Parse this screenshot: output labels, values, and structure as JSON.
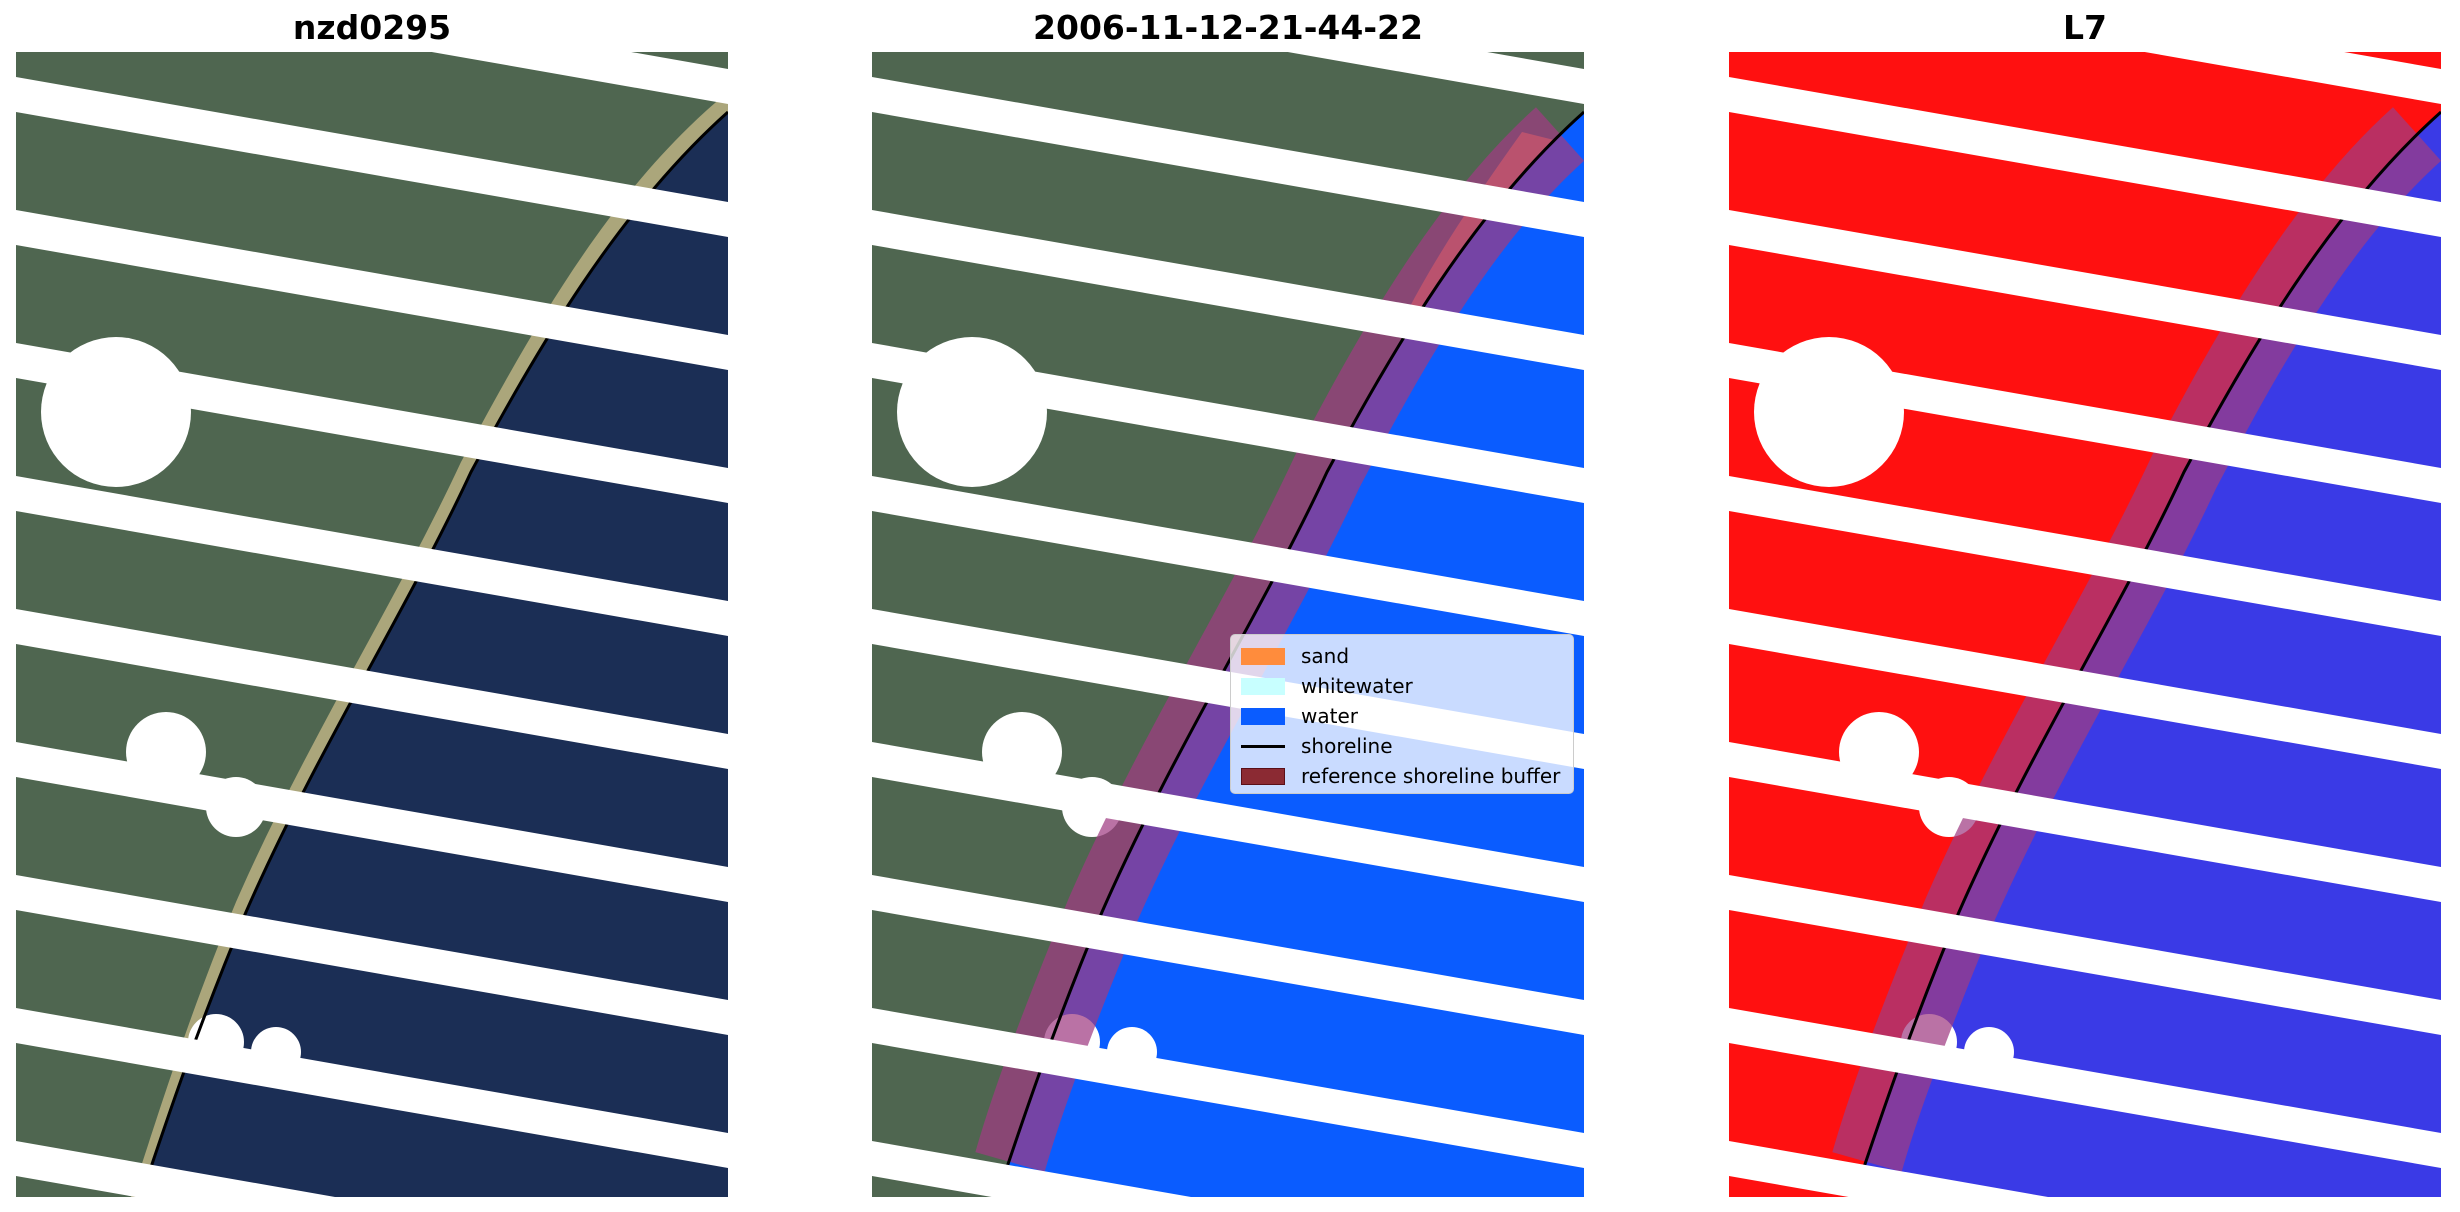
{
  "panels": [
    {
      "title": "nzd0295",
      "kind": "rgb"
    },
    {
      "title": "2006-11-12-21-44-22",
      "kind": "classified"
    },
    {
      "title": "L7",
      "kind": "index"
    }
  ],
  "legend": {
    "items": [
      {
        "label": "sand",
        "color": "#ff8c3c",
        "type": "patch"
      },
      {
        "label": "whitewater",
        "color": "#c8ffff",
        "type": "patch"
      },
      {
        "label": "water",
        "color": "#0a5cff",
        "type": "patch"
      },
      {
        "label": "shoreline",
        "color": "#000000",
        "type": "line"
      },
      {
        "label": "reference shoreline buffer",
        "color": "#8b2a33",
        "type": "patch"
      }
    ]
  },
  "colors": {
    "land_rgb": "#4f6650",
    "water_rgb": "#1b2e55",
    "land_index": "#ff1010",
    "water_index": "#3a3ae6",
    "buffer": "#a03c82"
  }
}
